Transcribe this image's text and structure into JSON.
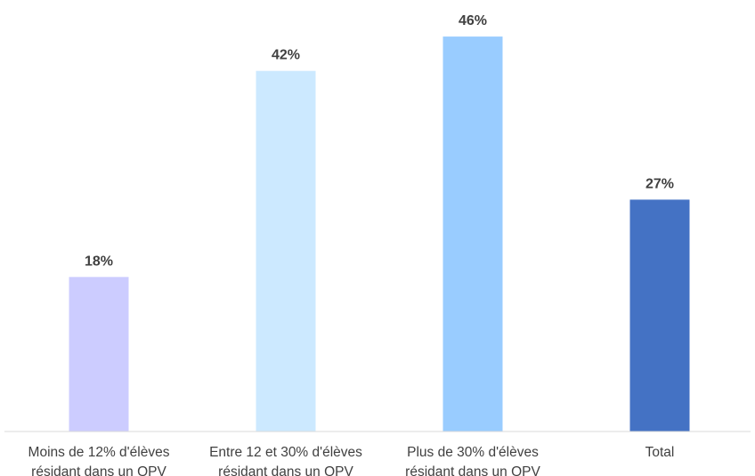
{
  "chart_data": {
    "type": "bar",
    "categories": [
      [
        "Moins de 12% d'élèves",
        "résidant dans un QPV"
      ],
      [
        "Entre 12 et 30% d'élèves",
        "résidant dans un QPV"
      ],
      [
        "Plus de 30% d'élèves",
        "résidant dans un QPV"
      ],
      [
        "Total"
      ]
    ],
    "values": [
      18,
      42,
      46,
      27
    ],
    "value_labels": [
      "18%",
      "42%",
      "46%",
      "27%"
    ],
    "colors": [
      "#ccccff",
      "#cce9ff",
      "#99ccff",
      "#4472c4"
    ],
    "ylim": [
      0,
      50
    ],
    "grid": false,
    "legend": "none"
  }
}
